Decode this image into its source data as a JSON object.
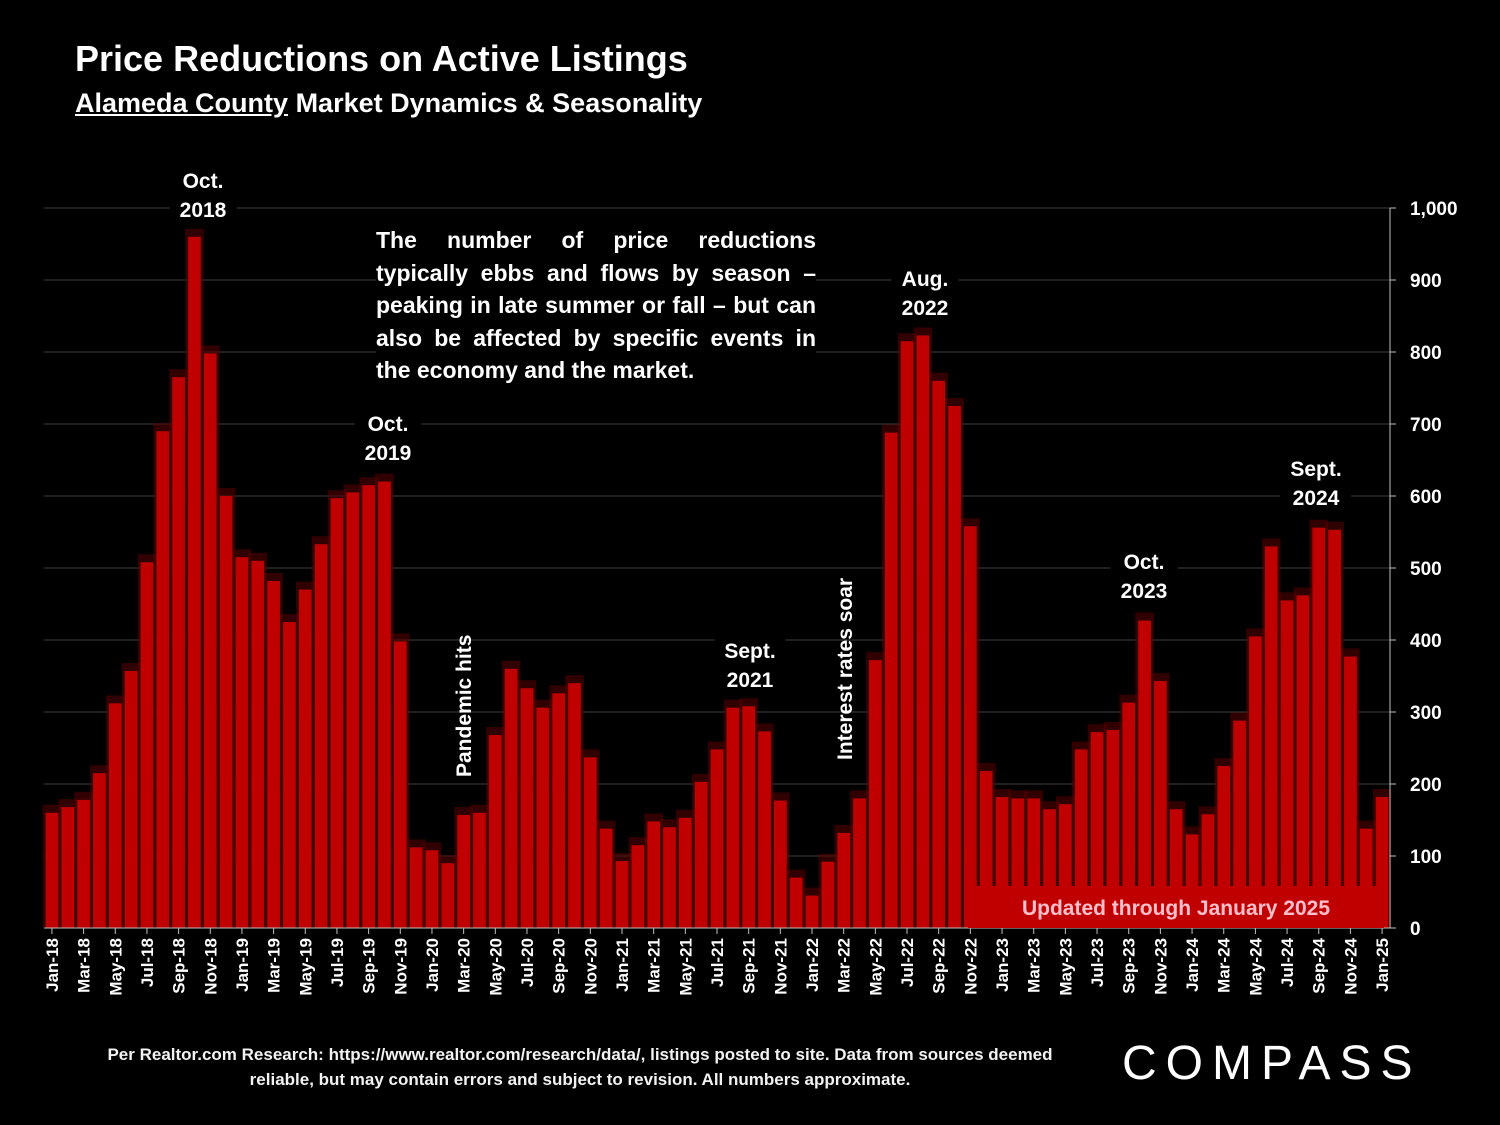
{
  "title": "Price Reductions on Active Listings",
  "subtitle_region": "Alameda County",
  "subtitle_rest": "Market Dynamics & Seasonality",
  "note": "The number of price reductions typically ebbs and flows by season – peaking in late summer or fall – but can also be affected by specific events in the economy and the market.",
  "annotations": {
    "oct2018": {
      "line1": "Oct.",
      "line2": "2018"
    },
    "oct2019": {
      "line1": "Oct.",
      "line2": "2019"
    },
    "sept2021": {
      "line1": "Sept.",
      "line2": "2021"
    },
    "aug2022": {
      "line1": "Aug.",
      "line2": "2022"
    },
    "oct2023": {
      "line1": "Oct.",
      "line2": "2023"
    },
    "sept2024": {
      "line1": "Sept.",
      "line2": "2024"
    },
    "pandemic": "Pandemic hits",
    "rates": "Interest rates soar"
  },
  "updated_badge": "Updated through January 2025",
  "source_text": "Per Realtor.com Research:  https://www.realtor.com/research/data/, listings posted to site. Data from sources deemed reliable, but may contain errors and subject to revision. All numbers approximate.",
  "logo": "COMPASS",
  "colors": {
    "bar": "#c00000",
    "bar_glow": "#5a0000",
    "grid": "#404040",
    "background": "#000000"
  },
  "chart_data": {
    "type": "bar",
    "categories": [
      "Jan-18",
      "Feb-18",
      "Mar-18",
      "Apr-18",
      "May-18",
      "Jun-18",
      "Jul-18",
      "Aug-18",
      "Sep-18",
      "Oct-18",
      "Nov-18",
      "Dec-18",
      "Jan-19",
      "Feb-19",
      "Mar-19",
      "Apr-19",
      "May-19",
      "Jun-19",
      "Jul-19",
      "Aug-19",
      "Sep-19",
      "Oct-19",
      "Nov-19",
      "Dec-19",
      "Jan-20",
      "Feb-20",
      "Mar-20",
      "Apr-20",
      "May-20",
      "Jun-20",
      "Jul-20",
      "Aug-20",
      "Sep-20",
      "Oct-20",
      "Nov-20",
      "Dec-20",
      "Jan-21",
      "Feb-21",
      "Mar-21",
      "Apr-21",
      "May-21",
      "Jun-21",
      "Jul-21",
      "Aug-21",
      "Sep-21",
      "Oct-21",
      "Nov-21",
      "Dec-21",
      "Jan-22",
      "Feb-22",
      "Mar-22",
      "Apr-22",
      "May-22",
      "Jun-22",
      "Jul-22",
      "Aug-22",
      "Sep-22",
      "Oct-22",
      "Nov-22",
      "Dec-22",
      "Jan-23",
      "Feb-23",
      "Mar-23",
      "Apr-23",
      "May-23",
      "Jun-23",
      "Jul-23",
      "Aug-23",
      "Sep-23",
      "Oct-23",
      "Nov-23",
      "Dec-23",
      "Jan-24",
      "Feb-24",
      "Mar-24",
      "Apr-24",
      "May-24",
      "Jun-24",
      "Jul-24",
      "Aug-24",
      "Sep-24",
      "Oct-24",
      "Nov-24",
      "Dec-24",
      "Jan-25"
    ],
    "tick_labels": [
      "Jan-18",
      "Mar-18",
      "May-18",
      "Jul-18",
      "Sep-18",
      "Nov-18",
      "Jan-19",
      "Mar-19",
      "May-19",
      "Jul-19",
      "Sep-19",
      "Nov-19",
      "Jan-20",
      "Mar-20",
      "May-20",
      "Jul-20",
      "Sep-20",
      "Nov-20",
      "Jan-21",
      "Mar-21",
      "May-21",
      "Jul-21",
      "Sep-21",
      "Nov-21",
      "Jan-22",
      "Mar-22",
      "May-22",
      "Jul-22",
      "Sep-22",
      "Nov-22",
      "Jan-23",
      "Mar-23",
      "May-23",
      "Jul-23",
      "Sep-23",
      "Nov-23",
      "Jan-24",
      "Mar-24",
      "May-24",
      "Jul-24",
      "Sep-24",
      "Nov-24",
      "Jan-25"
    ],
    "values": [
      160,
      168,
      178,
      215,
      312,
      357,
      508,
      690,
      765,
      960,
      798,
      600,
      515,
      510,
      482,
      425,
      470,
      533,
      597,
      605,
      615,
      620,
      398,
      112,
      108,
      90,
      157,
      160,
      268,
      360,
      333,
      306,
      326,
      340,
      237,
      138,
      93,
      115,
      148,
      140,
      153,
      203,
      248,
      306,
      308,
      273,
      177,
      70,
      45,
      92,
      132,
      180,
      372,
      688,
      815,
      823,
      760,
      725,
      558,
      218,
      182,
      180,
      180,
      165,
      172,
      248,
      272,
      275,
      313,
      427,
      343,
      165,
      130,
      158,
      225,
      288,
      405,
      530,
      455,
      462,
      556,
      553,
      377,
      138,
      182
    ],
    "yticks": [
      0,
      100,
      200,
      300,
      400,
      500,
      600,
      700,
      800,
      900,
      1000
    ],
    "ylim": [
      0,
      1000
    ],
    "grid": true
  }
}
